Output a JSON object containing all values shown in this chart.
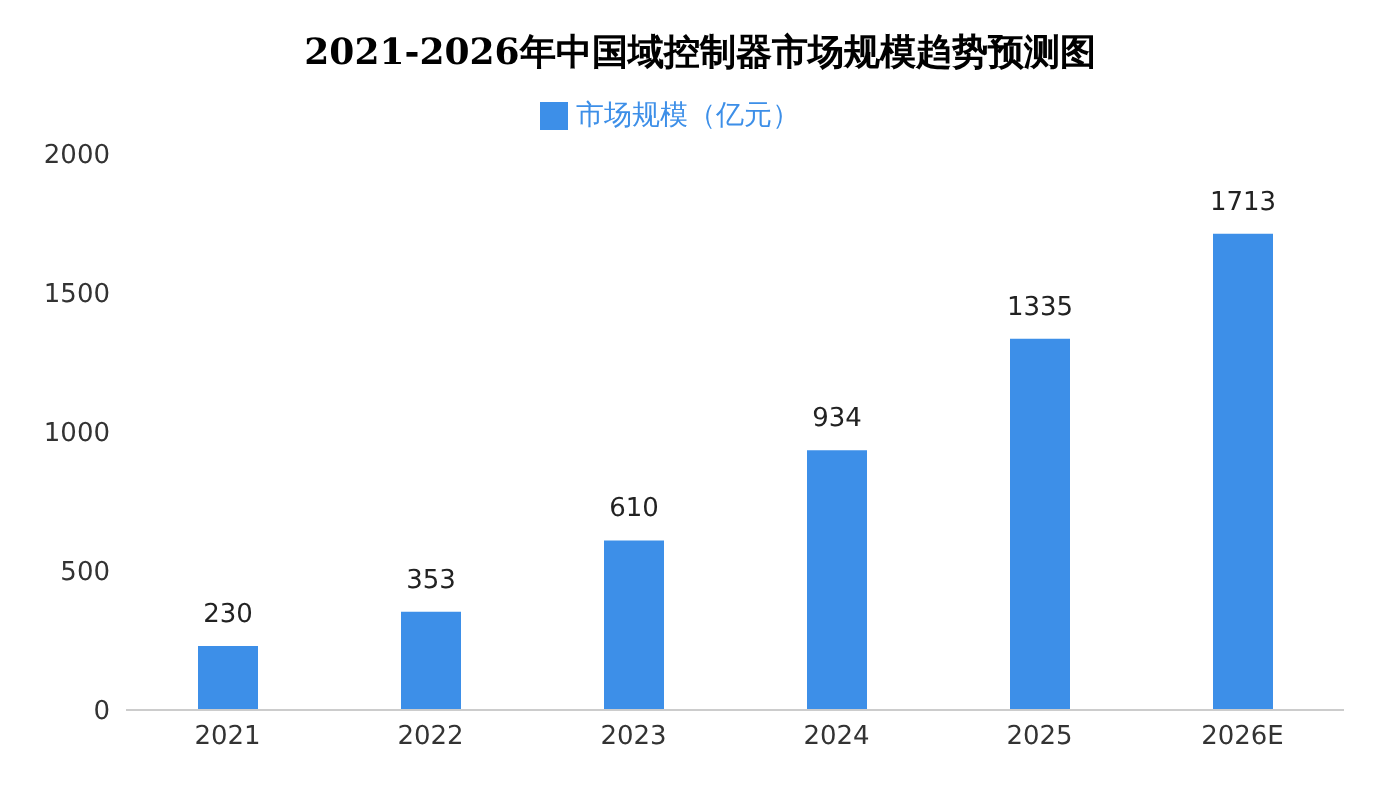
{
  "chart_data": {
    "type": "bar",
    "title": "2021-2026年中国域控制器市场规模趋势预测图",
    "categories": [
      "2021",
      "2022",
      "2023",
      "2024",
      "2025",
      "2026E"
    ],
    "series": [
      {
        "name": "市场规模（亿元）",
        "color": "#3d8fe8",
        "values": [
          230,
          353,
          610,
          934,
          1335,
          1713
        ]
      }
    ],
    "ylim": [
      0,
      2000
    ],
    "yticks": [
      0,
      500,
      1000,
      1500,
      2000
    ],
    "grid": false,
    "legend": "top",
    "data_labels": true
  }
}
